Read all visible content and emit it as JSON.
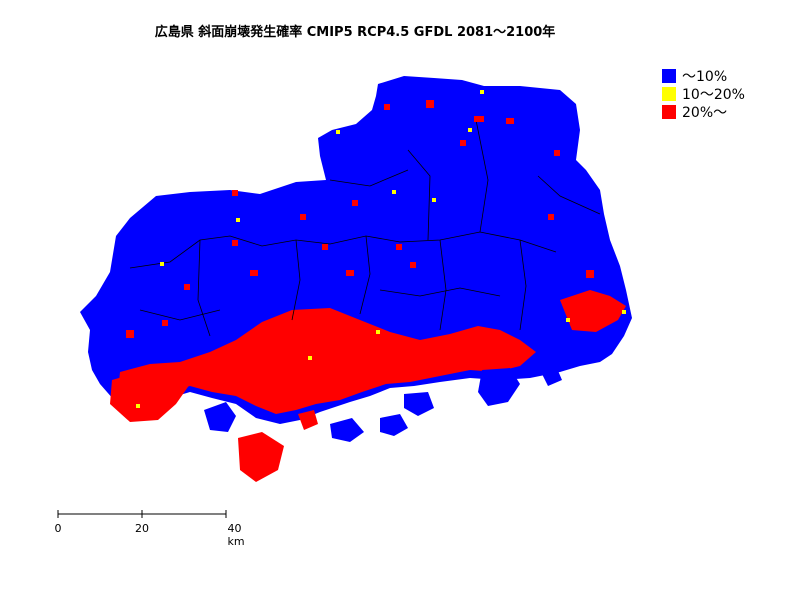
{
  "title": "広島県 斜面崩壊発生確率 CMIP5 RCP4.5 GFDL 2081～2100年",
  "legend": [
    {
      "label": "～10%",
      "color": "#0000FF"
    },
    {
      "label": "10～20%",
      "color": "#FFFF00"
    },
    {
      "label": "20%～",
      "color": "#FF0000"
    }
  ],
  "scale_bar": {
    "labels": [
      "0",
      "20",
      "40 km"
    ]
  },
  "colors": {
    "low": "#0000FF",
    "mid": "#FFFF00",
    "high": "#FF0000",
    "boundary": "#000000"
  }
}
